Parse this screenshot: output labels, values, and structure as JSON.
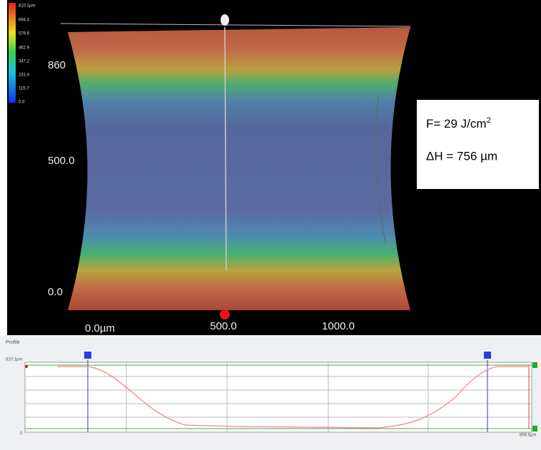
{
  "color_scale": {
    "labels": [
      "810.1µm",
      "694.3",
      "578.6",
      "462.9",
      "347.2",
      "231.4",
      "115.7",
      "0.0"
    ]
  },
  "y_axis": {
    "labels": [
      "860",
      "500.0",
      "0.0"
    ]
  },
  "x_axis": {
    "labels": [
      "0.0µm",
      "500.0",
      "1000.0"
    ]
  },
  "annotation": {
    "fluence": "F= 29 J/cm",
    "fluence_exponent": "2",
    "depth": "ΔH = 756 µm"
  },
  "profile": {
    "title": "Profile",
    "y_top": "810.1µm",
    "y_bottom": "0",
    "x_right": "859.5µm"
  }
}
